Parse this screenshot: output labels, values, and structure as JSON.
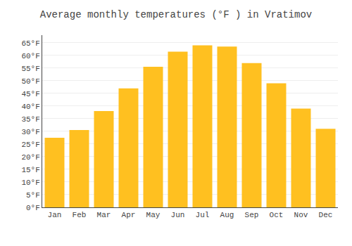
{
  "chart_data": {
    "type": "bar",
    "title": "Average monthly temperatures (°F ) in Vratimov",
    "categories": [
      "Jan",
      "Feb",
      "Mar",
      "Apr",
      "May",
      "Jun",
      "Jul",
      "Aug",
      "Sep",
      "Oct",
      "Nov",
      "Dec"
    ],
    "values": [
      27.5,
      30.5,
      38.0,
      47.0,
      55.5,
      61.5,
      64.0,
      63.5,
      57.0,
      49.0,
      39.0,
      31.0
    ],
    "color": "#FFC020",
    "ylim": [
      0,
      68
    ],
    "yticks": [
      {
        "value": 0,
        "label": "0°F"
      },
      {
        "value": 5,
        "label": "5°F"
      },
      {
        "value": 10,
        "label": "10°F"
      },
      {
        "value": 15,
        "label": "15°F"
      },
      {
        "value": 20,
        "label": "20°F"
      },
      {
        "value": 25,
        "label": "25°F"
      },
      {
        "value": 30,
        "label": "30°F"
      },
      {
        "value": 35,
        "label": "35°F"
      },
      {
        "value": 40,
        "label": "40°F"
      },
      {
        "value": 45,
        "label": "45°F"
      },
      {
        "value": 50,
        "label": "50°F"
      },
      {
        "value": 55,
        "label": "55°F"
      },
      {
        "value": 60,
        "label": "60°F"
      },
      {
        "value": 65,
        "label": "65°F"
      }
    ],
    "grid": true
  }
}
